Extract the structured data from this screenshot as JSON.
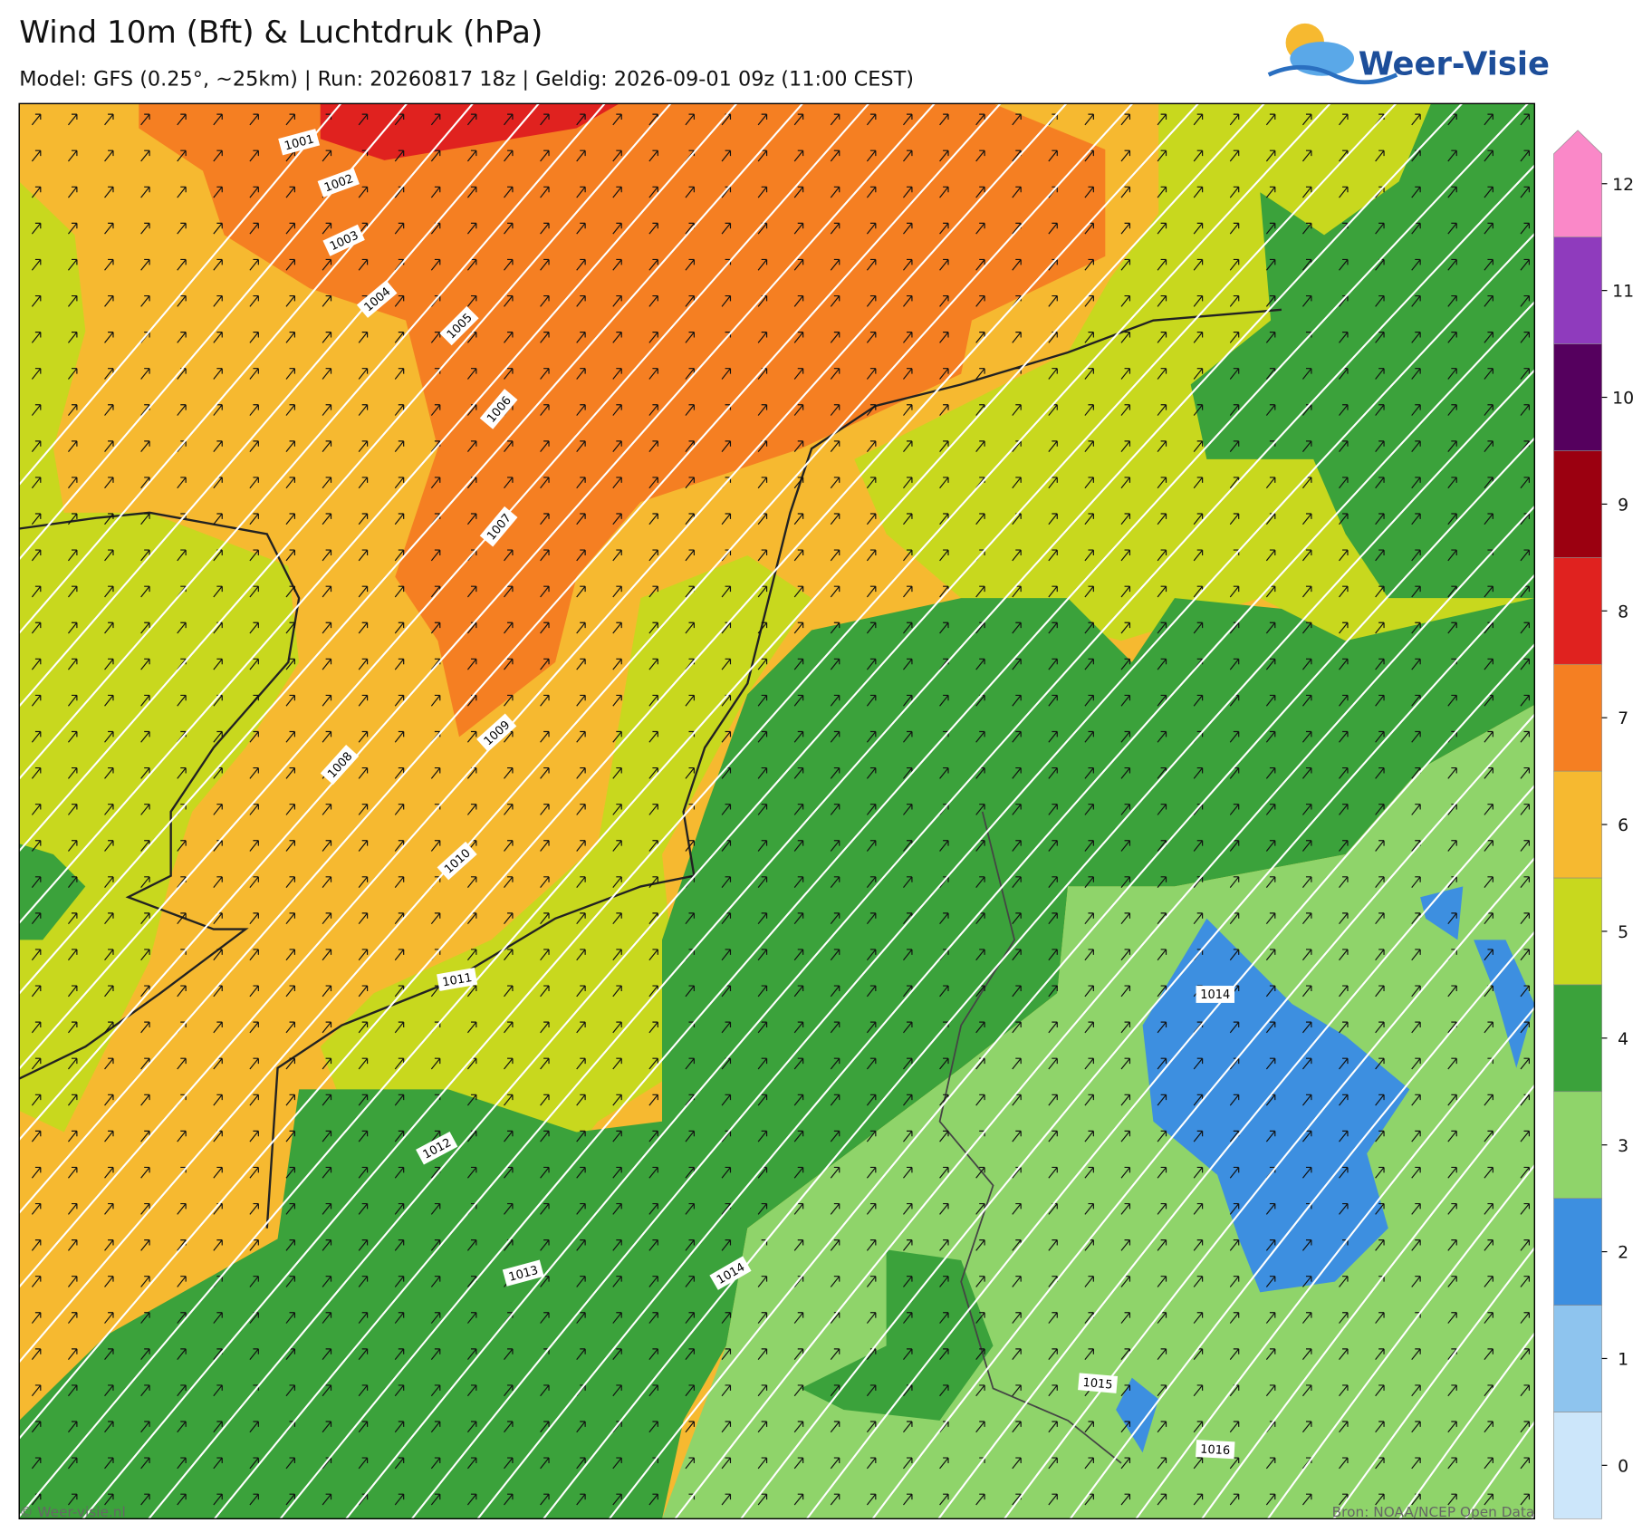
{
  "header": {
    "title": "Wind 10m (Bft) & Luchtdruk (hPa)",
    "subtitle": "Model: GFS (0.25°, ~25km)  |  Run: 20260817 18z  |  Geldig: 2026-09-01 09z (11:00 CEST)"
  },
  "logo": {
    "text": "Weer-Visie"
  },
  "map": {
    "isobars": [
      "1001",
      "1002",
      "1003",
      "1004",
      "1005",
      "1006",
      "1007",
      "1008",
      "1009",
      "1010",
      "1011",
      "1012",
      "1013",
      "1014",
      "1014",
      "1015",
      "1016"
    ]
  },
  "colorbar": {
    "ticks": [
      0,
      1,
      2,
      3,
      4,
      5,
      6,
      7,
      8,
      9,
      10,
      11,
      12
    ],
    "colors": [
      "#cce6fa",
      "#8ec4ee",
      "#3d8fe0",
      "#8fd46a",
      "#3ba23b",
      "#c8d81e",
      "#f6b930",
      "#f57f22",
      "#e0221f",
      "#9b0010",
      "#55005e",
      "#8f3bbd",
      "#fa88c8"
    ]
  },
  "footer": {
    "left": "© Weer-visie.nl",
    "right": "Bron: NOAA/NCEP Open Data"
  }
}
